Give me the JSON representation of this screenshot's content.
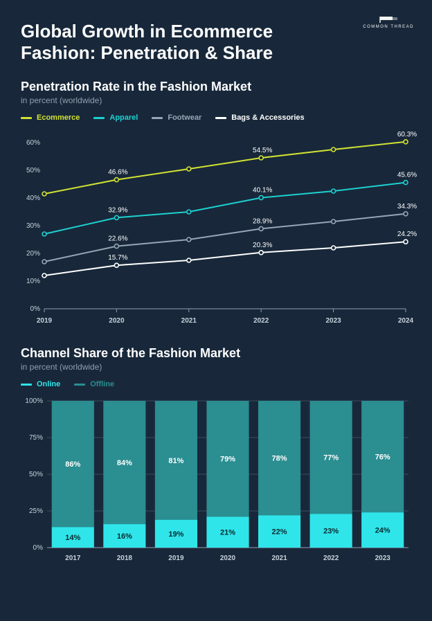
{
  "logo": {
    "text": "COMMON THREAD"
  },
  "title": "Global Growth in Ecommerce Fashion: Penetration & Share",
  "background_color": "#18283a",
  "penetration_chart": {
    "title": "Penetration Rate in the Fashion Market",
    "subtitle": "in percent (worldwide)",
    "type": "line",
    "x_categories": [
      "2019",
      "2020",
      "2021",
      "2022",
      "2023",
      "2024"
    ],
    "ylim": [
      0,
      60
    ],
    "ytick_step": 10,
    "ytick_labels": [
      "0%",
      "10%",
      "20%",
      "30%",
      "40%",
      "50%",
      "60%"
    ],
    "grid_color": "#3a4c5e",
    "axis_color": "#8fa0b0",
    "label_color": "#c8d2db",
    "point_label_indices": [
      1,
      3,
      5
    ],
    "series": [
      {
        "name": "Ecommerce",
        "color": "#d2e233",
        "values": [
          41.5,
          46.6,
          50.5,
          54.5,
          57.5,
          60.3
        ]
      },
      {
        "name": "Apparel",
        "color": "#1dd1d1",
        "values": [
          27.0,
          32.9,
          35.0,
          40.1,
          42.5,
          45.6
        ]
      },
      {
        "name": "Footwear",
        "color": "#96a6b6",
        "values": [
          17.0,
          22.6,
          25.0,
          28.9,
          31.5,
          34.3
        ]
      },
      {
        "name": "Bags & Accessories",
        "color": "#ffffff",
        "values": [
          12.0,
          15.7,
          17.5,
          20.3,
          22.0,
          24.2
        ]
      }
    ],
    "line_width": 2,
    "marker_radius": 3
  },
  "channel_chart": {
    "title": "Channel Share of the Fashion Market",
    "subtitle": "in percent (worldwide)",
    "type": "stacked-bar",
    "x_categories": [
      "2017",
      "2018",
      "2019",
      "2020",
      "2021",
      "2022",
      "2023"
    ],
    "ylim": [
      0,
      100
    ],
    "ytick_step": 25,
    "ytick_labels": [
      "0%",
      "25%",
      "50%",
      "75%",
      "100%"
    ],
    "grid_color": "#3a4c5e",
    "axis_color": "#8fa0b0",
    "series": [
      {
        "name": "Online",
        "color": "#2fe5ea",
        "text_color": "#0b2a2e",
        "values": [
          14,
          16,
          19,
          21,
          22,
          23,
          24
        ]
      },
      {
        "name": "Offline",
        "color": "#2b8e91",
        "text_color": "#ffffff",
        "values": [
          86,
          84,
          81,
          79,
          78,
          77,
          76
        ]
      }
    ],
    "bar_gap_ratio": 0.18
  }
}
